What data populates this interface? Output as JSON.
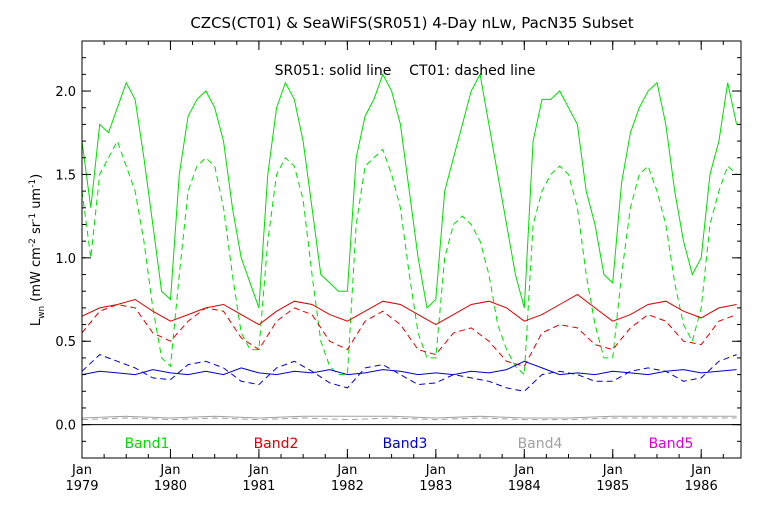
{
  "chart_data": {
    "type": "line",
    "title": "CZCS(CT01) & SeaWiFS(SR051) 4-Day nLw, PacN35 Subset",
    "subtitle": "SR051: solid line    CT01: dashed line",
    "ylabel": "L_wn (mW cm^-2 sr^-1 um^-1)",
    "ylabel_main": "L",
    "ylabel_sub": "wn",
    "ylabel_rest": "(mW cm",
    "ylabel_sup1": "-2",
    "ylabel_mid": " sr",
    "ylabel_sup2": "-1",
    "ylabel_mid2": " um",
    "ylabel_sup3": "-1",
    "ylabel_end": ")",
    "xlabel": "",
    "xlim": [
      1979.0,
      1986.45
    ],
    "ylim": [
      -0.2,
      2.3
    ],
    "y_ticks": [
      0.0,
      0.5,
      1.0,
      1.5,
      2.0
    ],
    "y_tick_labels": [
      "0.0",
      "0.5",
      "1.0",
      "1.5",
      "2.0"
    ],
    "x_ticks": [
      1979,
      1980,
      1981,
      1982,
      1983,
      1984,
      1985,
      1986
    ],
    "x_tick_labels_top": [
      "Jan",
      "Jan",
      "Jan",
      "Jan",
      "Jan",
      "Jan",
      "Jan",
      "Jan"
    ],
    "x_tick_labels_bottom": [
      "1979",
      "1980",
      "1981",
      "1982",
      "1983",
      "1984",
      "1985",
      "1986"
    ],
    "zero_line": true,
    "grid": false,
    "legend_position": "bottom",
    "series": [
      {
        "name": "Band1",
        "color": "#00dd00",
        "style": "solid",
        "x": [
          1979.0,
          1979.1,
          1979.2,
          1979.3,
          1979.4,
          1979.5,
          1979.6,
          1979.7,
          1979.8,
          1979.9,
          1980.0,
          1980.1,
          1980.2,
          1980.3,
          1980.4,
          1980.5,
          1980.6,
          1980.7,
          1980.8,
          1980.9,
          1981.0,
          1981.1,
          1981.2,
          1981.3,
          1981.4,
          1981.5,
          1981.6,
          1981.7,
          1981.8,
          1981.9,
          1982.0,
          1982.1,
          1982.2,
          1982.3,
          1982.4,
          1982.5,
          1982.6,
          1982.7,
          1982.8,
          1982.9,
          1983.0,
          1983.1,
          1983.2,
          1983.3,
          1983.4,
          1983.5,
          1983.6,
          1983.7,
          1983.8,
          1983.9,
          1984.0,
          1984.1,
          1984.2,
          1984.3,
          1984.4,
          1984.5,
          1984.6,
          1984.7,
          1984.8,
          1984.9,
          1985.0,
          1985.1,
          1985.2,
          1985.3,
          1985.4,
          1985.5,
          1985.6,
          1985.7,
          1985.8,
          1985.9,
          1986.0,
          1986.1,
          1986.2,
          1986.3,
          1986.4
        ],
        "y": [
          1.7,
          1.3,
          1.8,
          1.75,
          1.9,
          2.05,
          1.95,
          1.6,
          1.2,
          0.8,
          0.75,
          1.5,
          1.85,
          1.95,
          2.0,
          1.9,
          1.7,
          1.3,
          1.0,
          0.85,
          0.7,
          1.5,
          1.9,
          2.05,
          1.95,
          1.7,
          1.3,
          0.9,
          0.85,
          0.8,
          0.8,
          1.6,
          1.85,
          1.95,
          2.1,
          2.0,
          1.8,
          1.4,
          1.0,
          0.7,
          0.75,
          1.4,
          1.6,
          1.8,
          2.0,
          2.1,
          1.8,
          1.5,
          1.2,
          0.9,
          0.7,
          1.7,
          1.95,
          1.95,
          2.0,
          1.9,
          1.8,
          1.4,
          1.2,
          0.9,
          0.85,
          1.45,
          1.75,
          1.9,
          2.0,
          2.05,
          1.8,
          1.4,
          1.1,
          0.9,
          1.0,
          1.5,
          1.7,
          2.05,
          1.8
        ]
      },
      {
        "name": "Band1",
        "color": "#00dd00",
        "style": "dashed",
        "x": [
          1979.0,
          1979.1,
          1979.2,
          1979.3,
          1979.4,
          1979.5,
          1979.6,
          1979.7,
          1979.8,
          1979.9,
          1980.0,
          1980.1,
          1980.2,
          1980.3,
          1980.4,
          1980.5,
          1980.6,
          1980.7,
          1980.8,
          1980.9,
          1981.0,
          1981.1,
          1981.2,
          1981.3,
          1981.4,
          1981.5,
          1981.6,
          1981.7,
          1981.8,
          1981.9,
          1982.0,
          1982.1,
          1982.2,
          1982.3,
          1982.4,
          1982.5,
          1982.6,
          1982.7,
          1982.8,
          1982.9,
          1983.0,
          1983.1,
          1983.2,
          1983.3,
          1983.4,
          1983.5,
          1983.6,
          1983.7,
          1983.8,
          1983.9,
          1984.0,
          1984.1,
          1984.2,
          1984.3,
          1984.4,
          1984.5,
          1984.6,
          1984.7,
          1984.8,
          1984.9,
          1985.0,
          1985.1,
          1985.2,
          1985.3,
          1985.4,
          1985.5,
          1985.6,
          1985.7,
          1985.8,
          1985.9,
          1986.0,
          1986.1,
          1986.2,
          1986.3,
          1986.4
        ],
        "y": [
          1.4,
          1.0,
          1.5,
          1.6,
          1.7,
          1.55,
          1.4,
          1.1,
          0.7,
          0.4,
          0.35,
          0.9,
          1.4,
          1.55,
          1.6,
          1.55,
          1.3,
          0.9,
          0.55,
          0.45,
          0.45,
          1.1,
          1.5,
          1.6,
          1.55,
          1.35,
          0.9,
          0.5,
          0.35,
          0.3,
          0.3,
          1.2,
          1.55,
          1.6,
          1.65,
          1.5,
          1.3,
          0.9,
          0.55,
          0.4,
          0.4,
          1.0,
          1.2,
          1.25,
          1.2,
          1.1,
          0.9,
          0.6,
          0.45,
          0.35,
          0.3,
          1.2,
          1.4,
          1.5,
          1.55,
          1.5,
          1.3,
          0.9,
          0.6,
          0.4,
          0.4,
          0.9,
          1.3,
          1.5,
          1.55,
          1.4,
          1.2,
          0.85,
          0.6,
          0.5,
          0.7,
          1.2,
          1.4,
          1.55,
          1.5
        ]
      },
      {
        "name": "Band2",
        "color": "#dd0000",
        "style": "solid",
        "x": [
          1979.0,
          1979.2,
          1979.4,
          1979.6,
          1979.8,
          1980.0,
          1980.2,
          1980.4,
          1980.6,
          1980.8,
          1981.0,
          1981.2,
          1981.4,
          1981.6,
          1981.8,
          1982.0,
          1982.2,
          1982.4,
          1982.6,
          1982.8,
          1983.0,
          1983.2,
          1983.4,
          1983.6,
          1983.8,
          1984.0,
          1984.2,
          1984.4,
          1984.6,
          1984.8,
          1985.0,
          1985.2,
          1985.4,
          1985.6,
          1985.8,
          1986.0,
          1986.2,
          1986.4
        ],
        "y": [
          0.65,
          0.7,
          0.72,
          0.75,
          0.68,
          0.62,
          0.66,
          0.7,
          0.72,
          0.66,
          0.6,
          0.68,
          0.74,
          0.72,
          0.66,
          0.62,
          0.68,
          0.74,
          0.72,
          0.66,
          0.6,
          0.66,
          0.72,
          0.74,
          0.7,
          0.62,
          0.66,
          0.72,
          0.78,
          0.7,
          0.62,
          0.66,
          0.72,
          0.74,
          0.68,
          0.64,
          0.7,
          0.72
        ]
      },
      {
        "name": "Band2",
        "color": "#dd0000",
        "style": "dashed",
        "x": [
          1979.0,
          1979.2,
          1979.4,
          1979.6,
          1979.8,
          1980.0,
          1980.2,
          1980.4,
          1980.6,
          1980.8,
          1981.0,
          1981.2,
          1981.4,
          1981.6,
          1981.8,
          1982.0,
          1982.2,
          1982.4,
          1982.6,
          1982.8,
          1983.0,
          1983.2,
          1983.4,
          1983.6,
          1983.8,
          1984.0,
          1984.2,
          1984.4,
          1984.6,
          1984.8,
          1985.0,
          1985.2,
          1985.4,
          1985.6,
          1985.8,
          1986.0,
          1986.2,
          1986.4
        ],
        "y": [
          0.55,
          0.68,
          0.72,
          0.7,
          0.55,
          0.5,
          0.62,
          0.7,
          0.68,
          0.52,
          0.45,
          0.62,
          0.7,
          0.66,
          0.5,
          0.45,
          0.62,
          0.68,
          0.6,
          0.45,
          0.42,
          0.55,
          0.58,
          0.5,
          0.38,
          0.35,
          0.55,
          0.6,
          0.58,
          0.48,
          0.45,
          0.58,
          0.66,
          0.62,
          0.5,
          0.48,
          0.62,
          0.66
        ]
      },
      {
        "name": "Band3",
        "color": "#0000cc",
        "style": "solid",
        "x": [
          1979.0,
          1979.2,
          1979.4,
          1979.6,
          1979.8,
          1980.0,
          1980.2,
          1980.4,
          1980.6,
          1980.8,
          1981.0,
          1981.2,
          1981.4,
          1981.6,
          1981.8,
          1982.0,
          1982.2,
          1982.4,
          1982.6,
          1982.8,
          1983.0,
          1983.2,
          1983.4,
          1983.6,
          1983.8,
          1984.0,
          1984.2,
          1984.4,
          1984.6,
          1984.8,
          1985.0,
          1985.2,
          1985.4,
          1985.6,
          1985.8,
          1986.0,
          1986.2,
          1986.4
        ],
        "y": [
          0.3,
          0.32,
          0.31,
          0.3,
          0.33,
          0.31,
          0.3,
          0.32,
          0.3,
          0.34,
          0.31,
          0.3,
          0.32,
          0.31,
          0.33,
          0.3,
          0.31,
          0.33,
          0.32,
          0.3,
          0.31,
          0.3,
          0.32,
          0.31,
          0.33,
          0.38,
          0.34,
          0.3,
          0.31,
          0.3,
          0.32,
          0.31,
          0.3,
          0.32,
          0.33,
          0.31,
          0.32,
          0.33
        ]
      },
      {
        "name": "Band3",
        "color": "#0000cc",
        "style": "dashed",
        "x": [
          1979.0,
          1979.2,
          1979.4,
          1979.6,
          1979.8,
          1980.0,
          1980.2,
          1980.4,
          1980.6,
          1980.8,
          1981.0,
          1981.2,
          1981.4,
          1981.6,
          1981.8,
          1982.0,
          1982.2,
          1982.4,
          1982.6,
          1982.8,
          1983.0,
          1983.2,
          1983.4,
          1983.6,
          1983.8,
          1984.0,
          1984.2,
          1984.4,
          1984.6,
          1984.8,
          1985.0,
          1985.2,
          1985.4,
          1985.6,
          1985.8,
          1986.0,
          1986.2,
          1986.4
        ],
        "y": [
          0.32,
          0.42,
          0.38,
          0.34,
          0.28,
          0.27,
          0.36,
          0.38,
          0.34,
          0.26,
          0.24,
          0.34,
          0.38,
          0.32,
          0.25,
          0.22,
          0.34,
          0.36,
          0.3,
          0.24,
          0.25,
          0.3,
          0.28,
          0.26,
          0.22,
          0.2,
          0.3,
          0.32,
          0.3,
          0.26,
          0.26,
          0.32,
          0.34,
          0.32,
          0.26,
          0.28,
          0.38,
          0.42
        ]
      },
      {
        "name": "Band4",
        "color": "#a0a0a0",
        "style": "solid",
        "x": [
          1979.0,
          1979.5,
          1980.0,
          1980.5,
          1981.0,
          1981.5,
          1982.0,
          1982.5,
          1983.0,
          1983.5,
          1984.0,
          1984.5,
          1985.0,
          1985.5,
          1986.0,
          1986.4
        ],
        "y": [
          0.04,
          0.05,
          0.04,
          0.05,
          0.04,
          0.05,
          0.05,
          0.05,
          0.04,
          0.05,
          0.04,
          0.04,
          0.05,
          0.05,
          0.05,
          0.05
        ]
      },
      {
        "name": "Band4",
        "color": "#a0a0a0",
        "style": "dashed",
        "x": [
          1979.0,
          1979.5,
          1980.0,
          1980.5,
          1981.0,
          1981.5,
          1982.0,
          1982.5,
          1983.0,
          1983.5,
          1984.0,
          1984.5,
          1985.0,
          1985.5,
          1986.0,
          1986.4
        ],
        "y": [
          0.03,
          0.04,
          0.03,
          0.04,
          0.03,
          0.04,
          0.03,
          0.04,
          0.03,
          0.04,
          0.03,
          0.03,
          0.04,
          0.04,
          0.04,
          0.04
        ]
      }
    ],
    "legend": [
      {
        "label": "Band1",
        "color": "#00dd00"
      },
      {
        "label": "Band2",
        "color": "#dd0000"
      },
      {
        "label": "Band3",
        "color": "#0000cc"
      },
      {
        "label": "Band4",
        "color": "#a0a0a0"
      },
      {
        "label": "Band5",
        "color": "#dd00dd"
      }
    ]
  }
}
